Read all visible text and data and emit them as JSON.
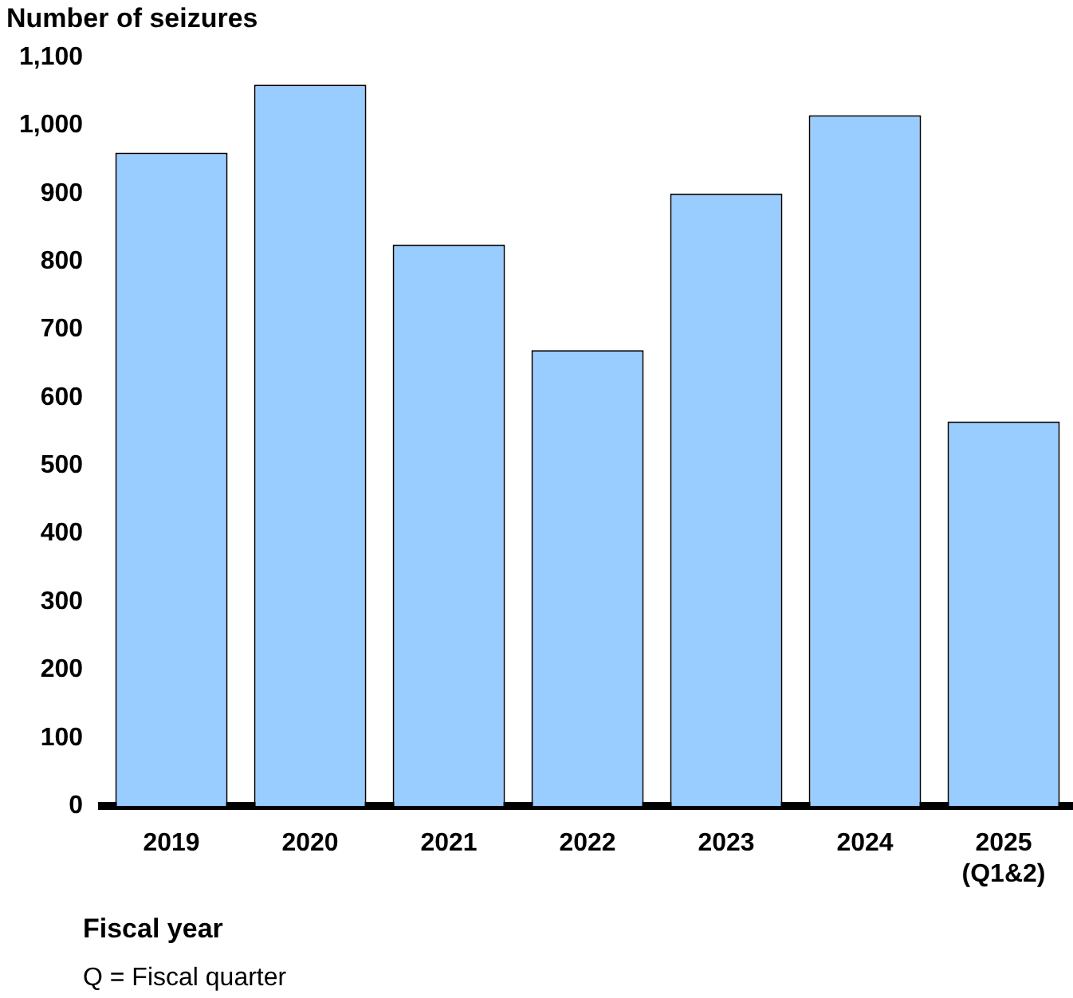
{
  "chart_data": {
    "type": "bar",
    "ylabel": "Number of seizures",
    "xlabel": "Fiscal year",
    "categories": [
      "2019",
      "2020",
      "2021",
      "2022",
      "2023",
      "2024",
      "2025\n(Q1&2)"
    ],
    "values": [
      960,
      1060,
      825,
      670,
      900,
      1015,
      565
    ],
    "color": "#99ccff",
    "ylim": [
      0,
      1100
    ],
    "yticks": [
      0,
      100,
      200,
      300,
      400,
      500,
      600,
      700,
      800,
      900,
      {
        "value": 1000,
        "label": "1,000"
      },
      {
        "value": 1100,
        "label": "1,100"
      }
    ],
    "grid": false,
    "legend": false,
    "annotations": [
      "Q = Fiscal quarter"
    ]
  }
}
